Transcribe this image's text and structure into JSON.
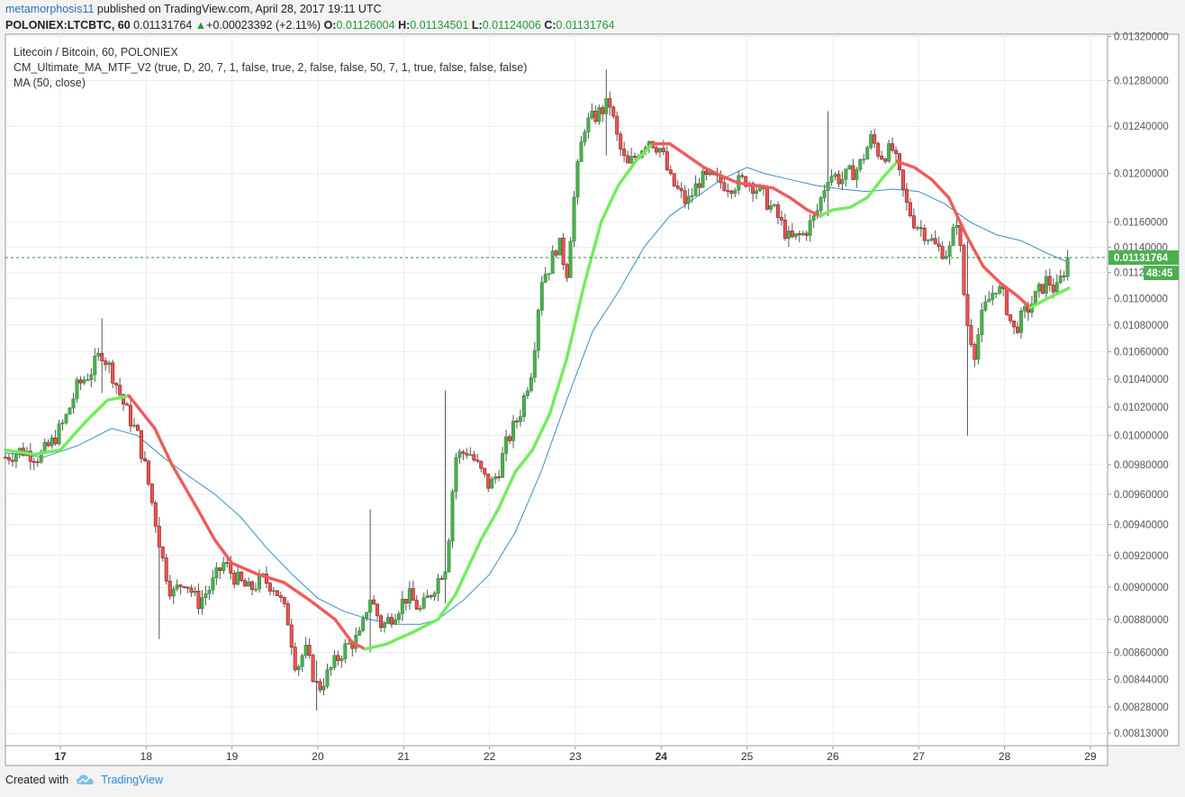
{
  "header": {
    "user": "metamorphosis11",
    "published_text": " published on TradingView.com, April 28, 2017 19:11 UTC"
  },
  "quote": {
    "symbol": "POLONIEX:LTCBTC, 60",
    "last": "0.01131764",
    "change": "+0.00023392 (+2.11%)",
    "open_label": "O:",
    "open": "0.01126004",
    "high_label": "H:",
    "high": "0.01134501",
    "low_label": "L:",
    "low": "0.01124006",
    "close_label": "C:",
    "close": "0.01131764",
    "up_color": "#259a3c"
  },
  "legend": [
    "Litecoin / Bitcoin, 60, POLONIEX",
    "CM_Ultimate_MA_MTF_V2 (true, D, 20, 7, 1, false, true, 2, false, false, 50, 7, 1, true, false, false, false)",
    "MA (50, close)"
  ],
  "footer": {
    "created_with": "Created with",
    "brand": "TradingView",
    "logo_icon": "tradingview-cloud-icon"
  },
  "chart_data": {
    "type": "candlestick",
    "y_scale": "log",
    "ylim": [
      0.00806,
      0.01322
    ],
    "y_ticks": [
      "0.01320000",
      "0.01280000",
      "0.01240000",
      "0.01200000",
      "0.01160000",
      "0.01140000",
      "0.01120000",
      "0.01100000",
      "0.01080000",
      "0.01060000",
      "0.01040000",
      "0.01020000",
      "0.01000000",
      "0.00980000",
      "0.00960000",
      "0.00940000",
      "0.00920000",
      "0.00900000",
      "0.00880000",
      "0.00860000",
      "0.00844000",
      "0.00828000",
      "0.00813000"
    ],
    "y_tick_values": [
      0.0132,
      0.0128,
      0.0124,
      0.012,
      0.0116,
      0.0114,
      0.0112,
      0.011,
      0.0108,
      0.0106,
      0.0104,
      0.0102,
      0.01,
      0.0098,
      0.0096,
      0.0094,
      0.0092,
      0.009,
      0.0088,
      0.0086,
      0.00844,
      0.00828,
      0.00813
    ],
    "x_ticks": [
      {
        "label": "17",
        "day": 17,
        "bold": true
      },
      {
        "label": "18",
        "day": 18
      },
      {
        "label": "19",
        "day": 19
      },
      {
        "label": "20",
        "day": 20
      },
      {
        "label": "21",
        "day": 21
      },
      {
        "label": "22",
        "day": 22
      },
      {
        "label": "23",
        "day": 23
      },
      {
        "label": "24",
        "day": 24,
        "bold": true
      },
      {
        "label": "25",
        "day": 25
      },
      {
        "label": "26",
        "day": 26
      },
      {
        "label": "27",
        "day": 27
      },
      {
        "label": "28",
        "day": 28
      },
      {
        "label": "29",
        "day": 29
      }
    ],
    "x_range_days": [
      16.36,
      29.2
    ],
    "last_price": 0.01131764,
    "last_price_label": "0.01131764",
    "countdown": "48:45",
    "up_color": "#4caf50",
    "down_color": "#ef5350",
    "ma_color": "#3a8fc7",
    "ultimate_ma_up_color": "#6fee5a",
    "ultimate_ma_down_color": "#f25a5a",
    "price_path": [
      [
        16.36,
        0.00985
      ],
      [
        16.55,
        0.0099
      ],
      [
        16.75,
        0.00985
      ],
      [
        16.9,
        0.00995
      ],
      [
        17.05,
        0.0101
      ],
      [
        17.2,
        0.01035
      ],
      [
        17.35,
        0.01045
      ],
      [
        17.48,
        0.0106
      ],
      [
        17.6,
        0.01045
      ],
      [
        17.75,
        0.0102
      ],
      [
        17.9,
        0.01
      ],
      [
        18.0,
        0.00975
      ],
      [
        18.1,
        0.00945
      ],
      [
        18.2,
        0.00915
      ],
      [
        18.3,
        0.00895
      ],
      [
        18.45,
        0.00905
      ],
      [
        18.6,
        0.0089
      ],
      [
        18.75,
        0.009
      ],
      [
        18.9,
        0.00915
      ],
      [
        19.05,
        0.00905
      ],
      [
        19.2,
        0.00898
      ],
      [
        19.35,
        0.00905
      ],
      [
        19.5,
        0.009
      ],
      [
        19.65,
        0.0088
      ],
      [
        19.75,
        0.0085
      ],
      [
        19.85,
        0.00862
      ],
      [
        20.0,
        0.00838
      ],
      [
        20.15,
        0.0085
      ],
      [
        20.3,
        0.00862
      ],
      [
        20.5,
        0.0087
      ],
      [
        20.6,
        0.00895
      ],
      [
        20.75,
        0.00875
      ],
      [
        20.9,
        0.00885
      ],
      [
        21.05,
        0.00895
      ],
      [
        21.2,
        0.00885
      ],
      [
        21.35,
        0.009
      ],
      [
        21.5,
        0.00915
      ],
      [
        21.6,
        0.00985
      ],
      [
        21.75,
        0.0099
      ],
      [
        21.9,
        0.00975
      ],
      [
        22.0,
        0.00965
      ],
      [
        22.1,
        0.00975
      ],
      [
        22.2,
        0.00995
      ],
      [
        22.35,
        0.01015
      ],
      [
        22.5,
        0.0105
      ],
      [
        22.6,
        0.01115
      ],
      [
        22.7,
        0.01125
      ],
      [
        22.8,
        0.01145
      ],
      [
        22.9,
        0.0112
      ],
      [
        23.0,
        0.0119
      ],
      [
        23.1,
        0.0124
      ],
      [
        23.25,
        0.0125
      ],
      [
        23.4,
        0.0126
      ],
      [
        23.5,
        0.01225
      ],
      [
        23.6,
        0.01205
      ],
      [
        23.7,
        0.01215
      ],
      [
        23.85,
        0.0123
      ],
      [
        24.0,
        0.0122
      ],
      [
        24.1,
        0.01195
      ],
      [
        24.3,
        0.01175
      ],
      [
        24.45,
        0.01195
      ],
      [
        24.6,
        0.01195
      ],
      [
        24.8,
        0.0119
      ],
      [
        25.0,
        0.01195
      ],
      [
        25.15,
        0.01185
      ],
      [
        25.35,
        0.01165
      ],
      [
        25.5,
        0.01145
      ],
      [
        25.65,
        0.0115
      ],
      [
        25.8,
        0.01165
      ],
      [
        25.95,
        0.012
      ],
      [
        26.1,
        0.01195
      ],
      [
        26.3,
        0.01205
      ],
      [
        26.45,
        0.0123
      ],
      [
        26.55,
        0.01215
      ],
      [
        26.7,
        0.0122
      ],
      [
        26.85,
        0.01175
      ],
      [
        26.95,
        0.0116
      ],
      [
        27.1,
        0.0115
      ],
      [
        27.2,
        0.0114
      ],
      [
        27.35,
        0.01135
      ],
      [
        27.45,
        0.01165
      ],
      [
        27.55,
        0.01085
      ],
      [
        27.65,
        0.0106
      ],
      [
        27.75,
        0.0109
      ],
      [
        27.9,
        0.0111
      ],
      [
        28.0,
        0.011
      ],
      [
        28.1,
        0.01075
      ],
      [
        28.25,
        0.0109
      ],
      [
        28.35,
        0.011
      ],
      [
        28.5,
        0.01115
      ],
      [
        28.6,
        0.01105
      ],
      [
        28.75,
        0.01131764
      ]
    ],
    "wicks": [
      {
        "x": 17.48,
        "high": 0.01085,
        "low": 0.0103
      },
      {
        "x": 21.5,
        "high": 0.01032,
        "low": 0.0089
      },
      {
        "x": 23.35,
        "high": 0.0129,
        "low": 0.01215
      },
      {
        "x": 25.95,
        "high": 0.01253,
        "low": 0.01165
      },
      {
        "x": 27.55,
        "high": 0.01145,
        "low": 0.01
      },
      {
        "x": 20.6,
        "high": 0.0095,
        "low": 0.0086
      },
      {
        "x": 18.15,
        "high": 0.00945,
        "low": 0.00868
      },
      {
        "x": 20.0,
        "high": 0.00855,
        "low": 0.00826
      }
    ],
    "ma50_path": [
      [
        16.36,
        0.00988
      ],
      [
        16.8,
        0.00985
      ],
      [
        17.2,
        0.00993
      ],
      [
        17.6,
        0.01005
      ],
      [
        17.9,
        0.01
      ],
      [
        18.2,
        0.00985
      ],
      [
        18.5,
        0.00972
      ],
      [
        18.8,
        0.0096
      ],
      [
        19.1,
        0.00945
      ],
      [
        19.4,
        0.00925
      ],
      [
        19.7,
        0.00908
      ],
      [
        20.0,
        0.00893
      ],
      [
        20.3,
        0.00885
      ],
      [
        20.6,
        0.0088
      ],
      [
        20.9,
        0.00877
      ],
      [
        21.2,
        0.00877
      ],
      [
        21.4,
        0.0088
      ],
      [
        21.7,
        0.00892
      ],
      [
        22.0,
        0.00908
      ],
      [
        22.3,
        0.00935
      ],
      [
        22.6,
        0.00975
      ],
      [
        22.9,
        0.01025
      ],
      [
        23.2,
        0.01075
      ],
      [
        23.5,
        0.01105
      ],
      [
        23.8,
        0.0114
      ],
      [
        24.1,
        0.01165
      ],
      [
        24.4,
        0.0118
      ],
      [
        24.7,
        0.01195
      ],
      [
        25.0,
        0.01205
      ],
      [
        25.2,
        0.012
      ],
      [
        25.5,
        0.01195
      ],
      [
        25.8,
        0.0119
      ],
      [
        26.1,
        0.01187
      ],
      [
        26.4,
        0.01185
      ],
      [
        26.7,
        0.01187
      ],
      [
        27.0,
        0.01185
      ],
      [
        27.3,
        0.01175
      ],
      [
        27.6,
        0.0116
      ],
      [
        27.9,
        0.0115
      ],
      [
        28.2,
        0.01145
      ],
      [
        28.5,
        0.01135
      ],
      [
        28.75,
        0.01128
      ]
    ],
    "ultimate_ma_path": [
      [
        16.36,
        0.0099,
        "up"
      ],
      [
        16.7,
        0.00987,
        "up"
      ],
      [
        17.0,
        0.0099,
        "up"
      ],
      [
        17.3,
        0.0101,
        "up"
      ],
      [
        17.55,
        0.01025,
        "up"
      ],
      [
        17.8,
        0.01028,
        "down"
      ],
      [
        18.1,
        0.01005,
        "down"
      ],
      [
        18.3,
        0.0098,
        "down"
      ],
      [
        18.6,
        0.0095,
        "down"
      ],
      [
        18.8,
        0.0093,
        "down"
      ],
      [
        19.0,
        0.00915,
        "down"
      ],
      [
        19.3,
        0.00908,
        "down"
      ],
      [
        19.6,
        0.00903,
        "down"
      ],
      [
        19.9,
        0.00892,
        "down"
      ],
      [
        20.2,
        0.0088,
        "down"
      ],
      [
        20.4,
        0.00866,
        "down"
      ],
      [
        20.55,
        0.00862,
        "up"
      ],
      [
        20.8,
        0.00865,
        "up"
      ],
      [
        21.1,
        0.00872,
        "up"
      ],
      [
        21.4,
        0.0088,
        "up"
      ],
      [
        21.6,
        0.00895,
        "up"
      ],
      [
        21.9,
        0.0093,
        "up"
      ],
      [
        22.1,
        0.0095,
        "up"
      ],
      [
        22.3,
        0.00975,
        "up"
      ],
      [
        22.5,
        0.0099,
        "up"
      ],
      [
        22.7,
        0.01015,
        "up"
      ],
      [
        22.9,
        0.01055,
        "up"
      ],
      [
        23.1,
        0.0111,
        "up"
      ],
      [
        23.3,
        0.0116,
        "up"
      ],
      [
        23.5,
        0.0119,
        "up"
      ],
      [
        23.7,
        0.0121,
        "up"
      ],
      [
        23.9,
        0.01225,
        "down"
      ],
      [
        24.1,
        0.01225,
        "down"
      ],
      [
        24.3,
        0.01215,
        "down"
      ],
      [
        24.5,
        0.01205,
        "down"
      ],
      [
        24.7,
        0.01198,
        "down"
      ],
      [
        24.9,
        0.01192,
        "down"
      ],
      [
        25.1,
        0.0119,
        "down"
      ],
      [
        25.3,
        0.01188,
        "down"
      ],
      [
        25.5,
        0.0118,
        "down"
      ],
      [
        25.7,
        0.0117,
        "down"
      ],
      [
        25.85,
        0.01165,
        "up"
      ],
      [
        26.0,
        0.0117,
        "up"
      ],
      [
        26.2,
        0.01172,
        "up"
      ],
      [
        26.4,
        0.0118,
        "up"
      ],
      [
        26.6,
        0.01198,
        "up"
      ],
      [
        26.75,
        0.0121,
        "down"
      ],
      [
        26.95,
        0.01205,
        "down"
      ],
      [
        27.15,
        0.01195,
        "down"
      ],
      [
        27.35,
        0.0118,
        "down"
      ],
      [
        27.55,
        0.0115,
        "down"
      ],
      [
        27.75,
        0.01125,
        "down"
      ],
      [
        27.95,
        0.01112,
        "down"
      ],
      [
        28.15,
        0.01102,
        "down"
      ],
      [
        28.3,
        0.01093,
        "up"
      ],
      [
        28.5,
        0.011,
        "up"
      ],
      [
        28.75,
        0.01108,
        "up"
      ]
    ]
  }
}
